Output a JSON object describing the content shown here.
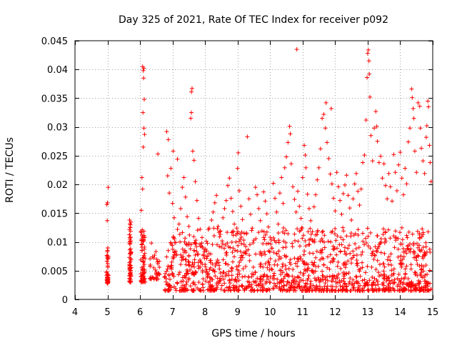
{
  "chart_data": {
    "type": "scatter",
    "title": "Day 325 of 2021, Rate Of TEC Index for receiver p092",
    "xlabel": "GPS time / hours",
    "ylabel": "ROTI / TECUs",
    "xlim": [
      4,
      15
    ],
    "ylim": [
      0,
      0.045
    ],
    "x_ticks": [
      4,
      5,
      6,
      7,
      8,
      9,
      10,
      11,
      12,
      13,
      14,
      15
    ],
    "x_tick_labels": [
      "4",
      "5",
      "6",
      "7",
      "8",
      "9",
      "10",
      "11",
      "12",
      "13",
      "14",
      "15"
    ],
    "y_ticks": [
      0,
      0.005,
      0.01,
      0.015,
      0.02,
      0.025,
      0.03,
      0.035,
      0.04,
      0.045
    ],
    "y_tick_labels": [
      "0",
      "0.005",
      "0.01",
      "0.015",
      "0.02",
      "0.025",
      "0.03",
      "0.035",
      "0.04",
      "0.045"
    ],
    "grid": true,
    "marker": "+",
    "marker_color": "#ff0000",
    "series": [
      {
        "name": "ROTI",
        "points": [
          [
            4.98,
            0.0165
          ],
          [
            5.0,
            0.0168
          ],
          [
            5.02,
            0.0195
          ],
          [
            4.99,
            0.0137
          ],
          [
            5.0,
            0.0085
          ],
          [
            5.01,
            0.0062
          ],
          [
            4.98,
            0.0048
          ],
          [
            5.02,
            0.0038
          ],
          [
            5.0,
            0.0031
          ],
          [
            5.01,
            0.0072
          ],
          [
            5.68,
            0.0138
          ],
          [
            5.7,
            0.0125
          ],
          [
            5.69,
            0.0105
          ],
          [
            5.71,
            0.0088
          ],
          [
            5.7,
            0.0066
          ],
          [
            5.68,
            0.0052
          ],
          [
            5.72,
            0.0041
          ],
          [
            5.7,
            0.0032
          ],
          [
            6.08,
            0.0405
          ],
          [
            6.1,
            0.0398
          ],
          [
            6.12,
            0.0402
          ],
          [
            6.11,
            0.0385
          ],
          [
            6.13,
            0.0348
          ],
          [
            6.09,
            0.0325
          ],
          [
            6.12,
            0.0298
          ],
          [
            6.14,
            0.0287
          ],
          [
            6.1,
            0.0265
          ],
          [
            6.06,
            0.0212
          ],
          [
            6.08,
            0.0192
          ],
          [
            6.04,
            0.0155
          ],
          [
            6.07,
            0.0121
          ],
          [
            6.05,
            0.0095
          ],
          [
            6.09,
            0.0072
          ],
          [
            6.06,
            0.0055
          ],
          [
            6.1,
            0.0041
          ],
          [
            6.13,
            0.0031
          ],
          [
            6.35,
            0.0098
          ],
          [
            6.38,
            0.0074
          ],
          [
            6.42,
            0.0055
          ],
          [
            6.5,
            0.0045
          ],
          [
            6.55,
            0.0253
          ],
          [
            6.55,
            0.0062
          ],
          [
            6.82,
            0.0292
          ],
          [
            6.87,
            0.0278
          ],
          [
            6.85,
            0.0215
          ],
          [
            6.9,
            0.0185
          ],
          [
            6.95,
            0.0228
          ],
          [
            7.0,
            0.0167
          ],
          [
            7.02,
            0.0258
          ],
          [
            7.05,
            0.0142
          ],
          [
            7.1,
            0.0099
          ],
          [
            7.15,
            0.0244
          ],
          [
            7.2,
            0.0131
          ],
          [
            7.25,
            0.0158
          ],
          [
            7.3,
            0.0195
          ],
          [
            7.35,
            0.0212
          ],
          [
            7.4,
            0.0178
          ],
          [
            7.45,
            0.0144
          ],
          [
            7.5,
            0.0127
          ],
          [
            7.52,
            0.0112
          ],
          [
            7.55,
            0.0088
          ],
          [
            7.58,
            0.0361
          ],
          [
            7.6,
            0.0367
          ],
          [
            7.58,
            0.0325
          ],
          [
            7.56,
            0.0315
          ],
          [
            7.62,
            0.0258
          ],
          [
            7.66,
            0.0242
          ],
          [
            7.7,
            0.0205
          ],
          [
            7.75,
            0.0172
          ],
          [
            7.8,
            0.0141
          ],
          [
            7.85,
            0.0122
          ],
          [
            7.9,
            0.0098
          ],
          [
            7.95,
            0.0078
          ],
          [
            8.0,
            0.0061
          ],
          [
            8.05,
            0.0052
          ],
          [
            8.1,
            0.0045
          ],
          [
            8.15,
            0.0038
          ],
          [
            8.2,
            0.0138
          ],
          [
            8.25,
            0.0152
          ],
          [
            8.3,
            0.0168
          ],
          [
            8.35,
            0.0181
          ],
          [
            8.4,
            0.0127
          ],
          [
            8.45,
            0.0109
          ],
          [
            8.5,
            0.0091
          ],
          [
            8.55,
            0.0142
          ],
          [
            8.6,
            0.0158
          ],
          [
            8.65,
            0.0172
          ],
          [
            8.7,
            0.0198
          ],
          [
            8.75,
            0.0211
          ],
          [
            8.8,
            0.0176
          ],
          [
            8.85,
            0.0153
          ],
          [
            8.9,
            0.0131
          ],
          [
            8.95,
            0.0112
          ],
          [
            9.0,
            0.0228
          ],
          [
            9.02,
            0.0255
          ],
          [
            9.05,
            0.0189
          ],
          [
            9.1,
            0.0162
          ],
          [
            9.15,
            0.0139
          ],
          [
            9.2,
            0.0115
          ],
          [
            9.25,
            0.0092
          ],
          [
            9.3,
            0.0283
          ],
          [
            9.35,
            0.0175
          ],
          [
            9.4,
            0.0148
          ],
          [
            9.45,
            0.0124
          ],
          [
            9.5,
            0.0103
          ],
          [
            9.55,
            0.0195
          ],
          [
            9.6,
            0.0182
          ],
          [
            9.65,
            0.0158
          ],
          [
            9.7,
            0.0137
          ],
          [
            9.75,
            0.0119
          ],
          [
            9.8,
            0.0187
          ],
          [
            9.85,
            0.0171
          ],
          [
            9.9,
            0.0149
          ],
          [
            9.95,
            0.0126
          ],
          [
            10.0,
            0.0108
          ],
          [
            10.05,
            0.0089
          ],
          [
            10.1,
            0.0202
          ],
          [
            10.15,
            0.0176
          ],
          [
            10.2,
            0.0152
          ],
          [
            10.25,
            0.0131
          ],
          [
            10.3,
            0.0185
          ],
          [
            10.35,
            0.0212
          ],
          [
            10.4,
            0.0167
          ],
          [
            10.45,
            0.0229
          ],
          [
            10.5,
            0.0248
          ],
          [
            10.55,
            0.0273
          ],
          [
            10.6,
            0.0301
          ],
          [
            10.62,
            0.0288
          ],
          [
            10.65,
            0.0236
          ],
          [
            10.7,
            0.0196
          ],
          [
            10.75,
            0.0174
          ],
          [
            10.8,
            0.0152
          ],
          [
            10.82,
            0.0435
          ],
          [
            10.85,
            0.0188
          ],
          [
            10.9,
            0.0162
          ],
          [
            10.95,
            0.0141
          ],
          [
            11.0,
            0.0212
          ],
          [
            11.05,
            0.0268
          ],
          [
            11.08,
            0.0251
          ],
          [
            11.1,
            0.0229
          ],
          [
            11.15,
            0.0183
          ],
          [
            11.2,
            0.0158
          ],
          [
            11.25,
            0.0137
          ],
          [
            11.3,
            0.0118
          ],
          [
            11.35,
            0.0161
          ],
          [
            11.4,
            0.0182
          ],
          [
            11.45,
            0.0208
          ],
          [
            11.5,
            0.0229
          ],
          [
            11.55,
            0.0262
          ],
          [
            11.6,
            0.0315
          ],
          [
            11.65,
            0.0322
          ],
          [
            11.7,
            0.0298
          ],
          [
            11.72,
            0.0342
          ],
          [
            11.75,
            0.0273
          ],
          [
            11.8,
            0.0245
          ],
          [
            11.85,
            0.0218
          ],
          [
            11.88,
            0.0332
          ],
          [
            11.9,
            0.0201
          ],
          [
            11.95,
            0.0176
          ],
          [
            12.0,
            0.0154
          ],
          [
            12.05,
            0.0221
          ],
          [
            12.1,
            0.0196
          ],
          [
            12.15,
            0.0172
          ],
          [
            12.2,
            0.0148
          ],
          [
            12.25,
            0.0184
          ],
          [
            12.3,
            0.0199
          ],
          [
            12.35,
            0.0216
          ],
          [
            12.4,
            0.0181
          ],
          [
            12.45,
            0.0159
          ],
          [
            12.5,
            0.0138
          ],
          [
            12.55,
            0.0175
          ],
          [
            12.6,
            0.0201
          ],
          [
            12.65,
            0.0219
          ],
          [
            12.7,
            0.0188
          ],
          [
            12.75,
            0.0164
          ],
          [
            12.8,
            0.0192
          ],
          [
            12.85,
            0.0238
          ],
          [
            12.9,
            0.0251
          ],
          [
            12.95,
            0.0312
          ],
          [
            12.98,
            0.0386
          ],
          [
            13.0,
            0.0428
          ],
          [
            13.02,
            0.0434
          ],
          [
            13.04,
            0.0415
          ],
          [
            13.05,
            0.0392
          ],
          [
            13.07,
            0.0352
          ],
          [
            13.1,
            0.0285
          ],
          [
            13.15,
            0.0241
          ],
          [
            13.2,
            0.0298
          ],
          [
            13.25,
            0.0327
          ],
          [
            13.28,
            0.0301
          ],
          [
            13.3,
            0.0275
          ],
          [
            13.35,
            0.0238
          ],
          [
            13.4,
            0.0249
          ],
          [
            13.45,
            0.0211
          ],
          [
            13.5,
            0.0236
          ],
          [
            13.55,
            0.0198
          ],
          [
            13.6,
            0.0175
          ],
          [
            13.65,
            0.0219
          ],
          [
            13.7,
            0.0196
          ],
          [
            13.75,
            0.0171
          ],
          [
            13.8,
            0.0252
          ],
          [
            13.85,
            0.0221
          ],
          [
            13.9,
            0.0189
          ],
          [
            13.95,
            0.0234
          ],
          [
            14.0,
            0.0256
          ],
          [
            14.05,
            0.0211
          ],
          [
            14.1,
            0.0182
          ],
          [
            14.15,
            0.0228
          ],
          [
            14.2,
            0.0201
          ],
          [
            14.25,
            0.0274
          ],
          [
            14.3,
            0.0298
          ],
          [
            14.35,
            0.0366
          ],
          [
            14.37,
            0.0351
          ],
          [
            14.4,
            0.0332
          ],
          [
            14.42,
            0.0315
          ],
          [
            14.45,
            0.0258
          ],
          [
            14.5,
            0.0221
          ],
          [
            14.55,
            0.0342
          ],
          [
            14.6,
            0.0336
          ],
          [
            14.62,
            0.0298
          ],
          [
            14.65,
            0.0263
          ],
          [
            14.7,
            0.0241
          ],
          [
            14.75,
            0.0219
          ],
          [
            14.8,
            0.0282
          ],
          [
            14.82,
            0.0302
          ],
          [
            14.85,
            0.0345
          ],
          [
            14.87,
            0.0335
          ],
          [
            14.9,
            0.0268
          ],
          [
            14.92,
            0.0238
          ],
          [
            14.95,
            0.0205
          ]
        ]
      }
    ]
  }
}
